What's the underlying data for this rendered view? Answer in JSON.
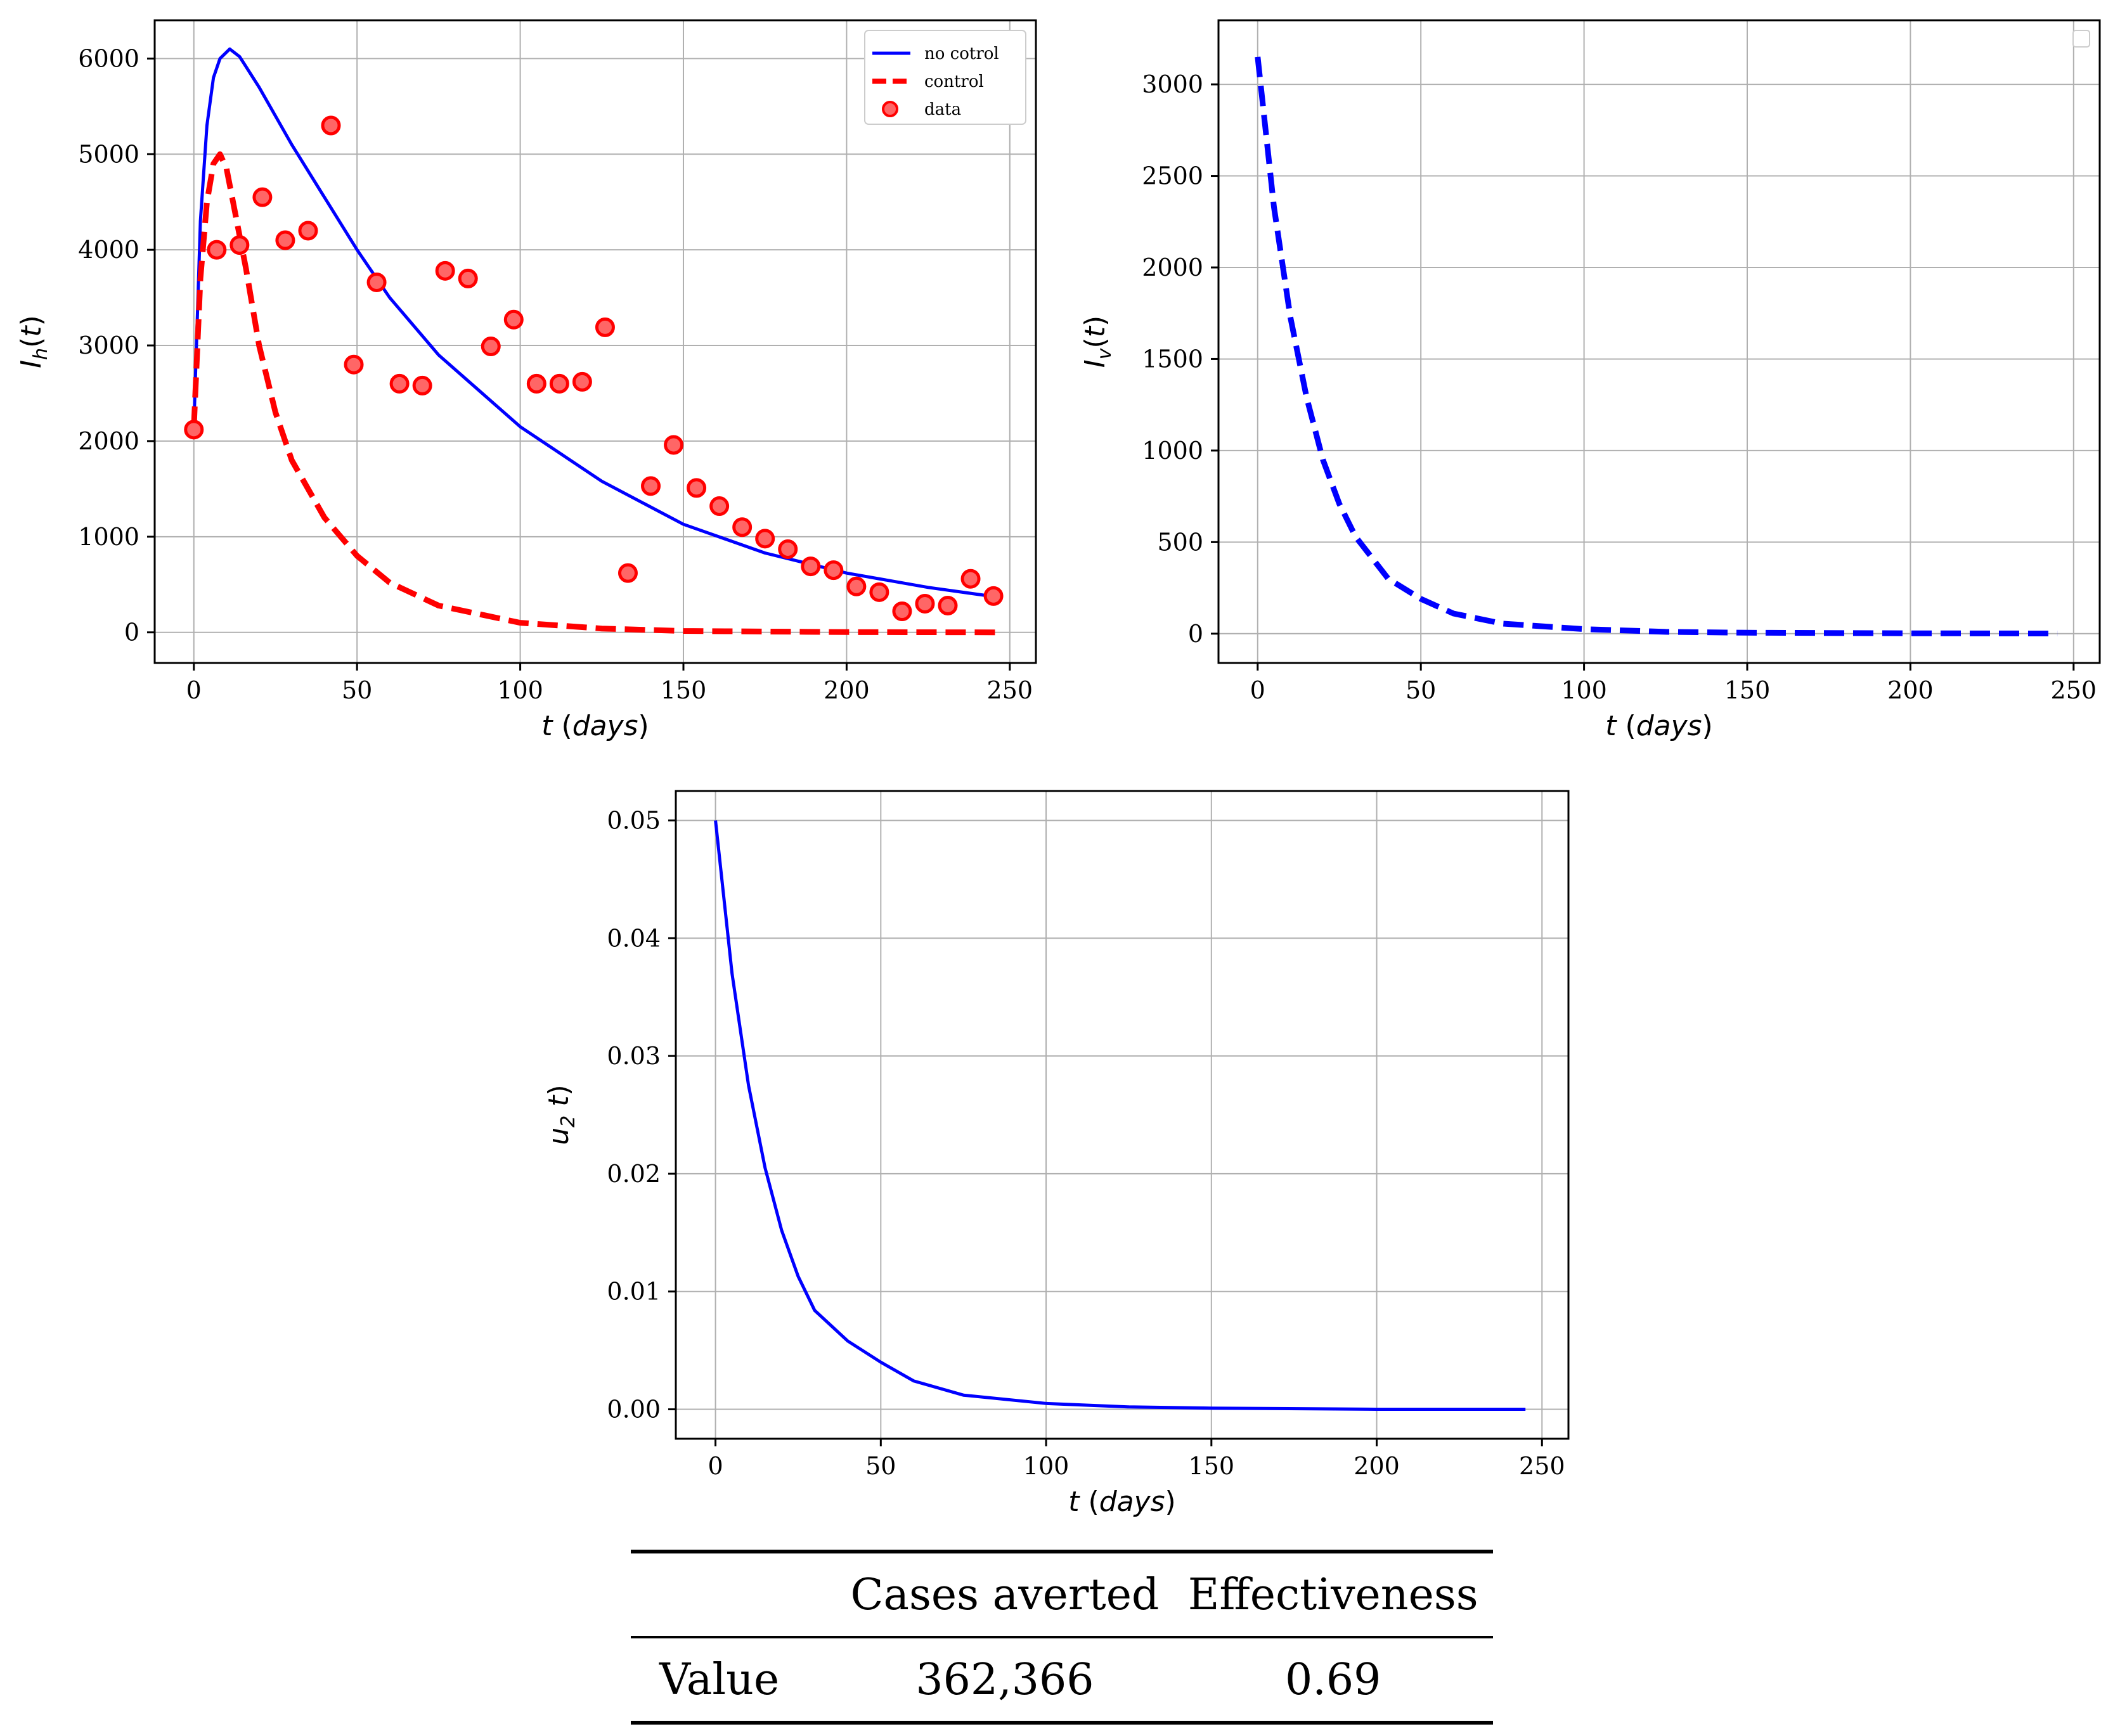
{
  "chart_data": [
    {
      "type": "line",
      "xlabel": "t (days)",
      "ylabel": "I_h(t)",
      "xlim": [
        -12,
        258
      ],
      "ylim": [
        -320,
        6400
      ],
      "xticks": [
        0,
        50,
        100,
        150,
        200,
        250
      ],
      "yticks": [
        0,
        1000,
        2000,
        3000,
        4000,
        5000,
        6000
      ],
      "legend": {
        "position": "top-right",
        "entries": [
          "no cotrol",
          "control",
          "data"
        ]
      },
      "series": [
        {
          "name": "no cotrol",
          "color": "#0000ff",
          "style": "solid",
          "x": [
            0,
            2,
            4,
            6,
            8,
            11,
            14,
            20,
            30,
            40,
            50,
            60,
            75,
            100,
            125,
            150,
            175,
            200,
            225,
            246
          ],
          "y": [
            2150,
            4300,
            5300,
            5800,
            6000,
            6100,
            6020,
            5700,
            5100,
            4550,
            4000,
            3500,
            2900,
            2150,
            1580,
            1130,
            830,
            620,
            470,
            370
          ]
        },
        {
          "name": "control",
          "color": "#ff0000",
          "style": "dashed",
          "x": [
            0,
            2,
            4,
            6,
            8,
            10,
            12,
            16,
            20,
            25,
            30,
            40,
            50,
            60,
            75,
            100,
            125,
            150,
            200,
            246
          ],
          "y": [
            2150,
            3700,
            4500,
            4900,
            5000,
            4850,
            4500,
            3800,
            3000,
            2300,
            1800,
            1200,
            800,
            520,
            280,
            100,
            40,
            15,
            3,
            0
          ]
        },
        {
          "name": "data",
          "color": "#ff0000",
          "style": "markers",
          "x": [
            0,
            7,
            14,
            21,
            28,
            35,
            42,
            49,
            56,
            63,
            70,
            77,
            84,
            91,
            98,
            105,
            112,
            119,
            126,
            133,
            140,
            147,
            154,
            161,
            168,
            175,
            182,
            189,
            196,
            203,
            210,
            217,
            224,
            231,
            238,
            245
          ],
          "y": [
            2120,
            4000,
            4050,
            4550,
            4100,
            4200,
            5300,
            2800,
            3660,
            2600,
            2580,
            3780,
            3700,
            2990,
            3270,
            2600,
            2600,
            2620,
            3190,
            620,
            1530,
            1960,
            1510,
            1320,
            1100,
            980,
            870,
            690,
            650,
            480,
            420,
            220,
            300,
            280,
            560,
            380
          ]
        }
      ]
    },
    {
      "type": "line",
      "xlabel": "t (days)",
      "ylabel": "I_v(t)",
      "xlim": [
        -12,
        258
      ],
      "ylim": [
        -160,
        3350
      ],
      "xticks": [
        0,
        50,
        100,
        150,
        200,
        250
      ],
      "yticks": [
        0,
        500,
        1000,
        1500,
        2000,
        2500,
        3000
      ],
      "legend": {
        "position": "top-right",
        "entries": []
      },
      "series": [
        {
          "name": "I_v",
          "color": "#0000ff",
          "style": "dashed",
          "x": [
            0,
            5,
            10,
            15,
            20,
            25,
            30,
            40,
            50,
            60,
            75,
            100,
            125,
            150,
            200,
            245
          ],
          "y": [
            3150,
            2330,
            1730,
            1290,
            950,
            710,
            530,
            300,
            190,
            110,
            55,
            25,
            10,
            5,
            2,
            1
          ]
        }
      ]
    },
    {
      "type": "line",
      "xlabel": "t (days)",
      "ylabel": "u_2 t)",
      "xlim": [
        -12,
        258
      ],
      "ylim": [
        -0.0025,
        0.0525
      ],
      "xticks": [
        0,
        50,
        100,
        150,
        200,
        250
      ],
      "yticks": [
        0.0,
        0.01,
        0.02,
        0.03,
        0.04,
        0.05
      ],
      "series": [
        {
          "name": "u2",
          "color": "#0000ff",
          "style": "solid",
          "x": [
            0,
            5,
            10,
            15,
            20,
            25,
            30,
            40,
            50,
            60,
            75,
            100,
            125,
            150,
            200,
            245
          ],
          "y": [
            0.05,
            0.037,
            0.0275,
            0.0205,
            0.0152,
            0.0113,
            0.0084,
            0.0058,
            0.004,
            0.0024,
            0.0012,
            0.0005,
            0.0002,
            0.0001,
            0.0,
            0.0
          ]
        }
      ]
    }
  ],
  "table": {
    "header": [
      "",
      "Cases averted",
      "Effectiveness"
    ],
    "row_label": "Value",
    "cases_averted": "362,366",
    "effectiveness": "0.69"
  }
}
